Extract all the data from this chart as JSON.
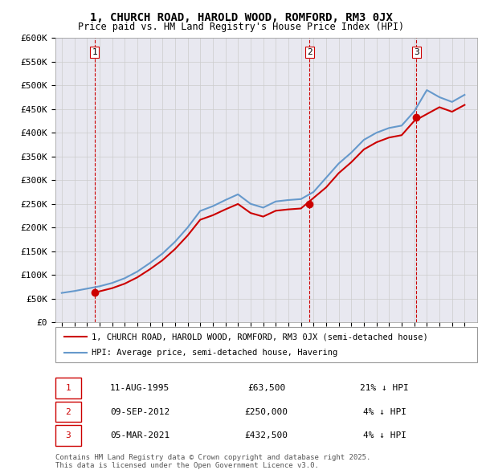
{
  "title_line1": "1, CHURCH ROAD, HAROLD WOOD, ROMFORD, RM3 0JX",
  "title_line2": "Price paid vs. HM Land Registry's House Price Index (HPI)",
  "ylabel_ticks": [
    "£0",
    "£50K",
    "£100K",
    "£150K",
    "£200K",
    "£250K",
    "£300K",
    "£350K",
    "£400K",
    "£450K",
    "£500K",
    "£550K",
    "£600K"
  ],
  "ytick_values": [
    0,
    50000,
    100000,
    150000,
    200000,
    250000,
    300000,
    350000,
    400000,
    450000,
    500000,
    550000,
    600000
  ],
  "xlim": [
    1992.5,
    2026.0
  ],
  "ylim": [
    0,
    600000
  ],
  "purchase_dates": [
    1995.61,
    2012.69,
    2021.17
  ],
  "purchase_prices": [
    63500,
    250000,
    432500
  ],
  "purchase_labels": [
    "1",
    "2",
    "3"
  ],
  "vline_color": "#cc0000",
  "purchase_color": "#cc0000",
  "hpi_color": "#6699cc",
  "bg_color": "#e8e8f0",
  "plot_bg": "#ffffff",
  "grid_color": "#cccccc",
  "legend_label_price": "1, CHURCH ROAD, HAROLD WOOD, ROMFORD, RM3 0JX (semi-detached house)",
  "legend_label_hpi": "HPI: Average price, semi-detached house, Havering",
  "table_data": [
    [
      "1",
      "11-AUG-1995",
      "£63,500",
      "21% ↓ HPI"
    ],
    [
      "2",
      "09-SEP-2012",
      "£250,000",
      "4% ↓ HPI"
    ],
    [
      "3",
      "05-MAR-2021",
      "£432,500",
      "4% ↓ HPI"
    ]
  ],
  "footnote": "Contains HM Land Registry data © Crown copyright and database right 2025.\nThis data is licensed under the Open Government Licence v3.0.",
  "hpi_years": [
    1993,
    1994,
    1995,
    1996,
    1997,
    1998,
    1999,
    2000,
    2001,
    2002,
    2003,
    2004,
    2005,
    2006,
    2007,
    2008,
    2009,
    2010,
    2011,
    2012,
    2013,
    2014,
    2015,
    2016,
    2017,
    2018,
    2019,
    2020,
    2021,
    2022,
    2023,
    2024,
    2025
  ],
  "hpi_values": [
    62000,
    66000,
    71000,
    76000,
    83000,
    93000,
    107000,
    125000,
    145000,
    170000,
    200000,
    235000,
    245000,
    258000,
    270000,
    250000,
    242000,
    255000,
    258000,
    260000,
    275000,
    305000,
    335000,
    358000,
    385000,
    400000,
    410000,
    415000,
    445000,
    490000,
    475000,
    465000,
    480000
  ]
}
